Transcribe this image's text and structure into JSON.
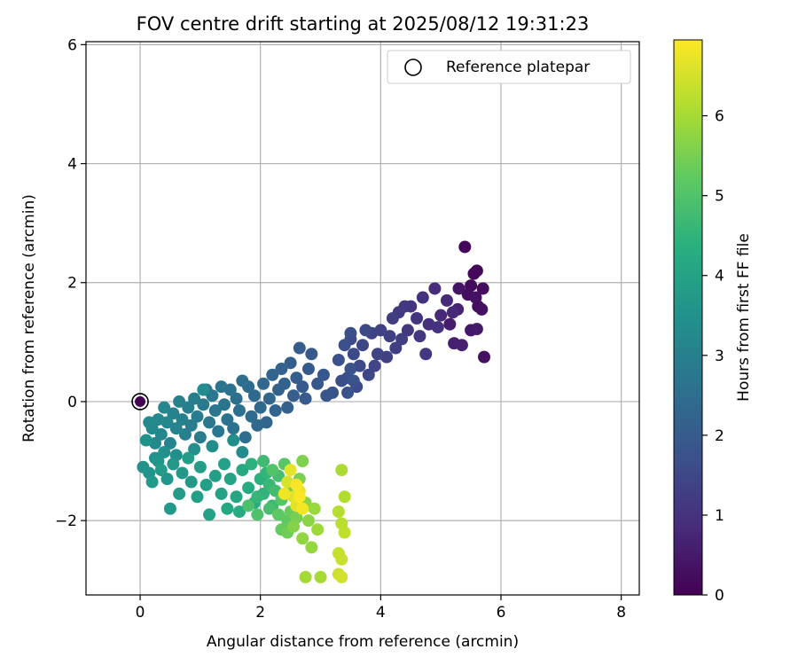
{
  "chart_data": {
    "type": "scatter",
    "title": "FOV centre drift starting at 2025/08/12 19:31:23",
    "xlabel": "Angular distance from reference (arcmin)",
    "ylabel": "Rotation from reference (arcmin)",
    "xlim": [
      -0.9,
      8.3
    ],
    "ylim": [
      -3.25,
      6.05
    ],
    "xticks": [
      0,
      2,
      4,
      6,
      8
    ],
    "xtick_labels": [
      "0",
      "2",
      "4",
      "6",
      "8"
    ],
    "yticks": [
      -2,
      0,
      2,
      4,
      6
    ],
    "ytick_labels": [
      "−2",
      "0",
      "2",
      "4",
      "6"
    ],
    "grid": true,
    "legend": {
      "position": "top-right",
      "label": "Reference platepar"
    },
    "reference_point": {
      "x": 0,
      "y": 0
    },
    "colorbar": {
      "label": "Hours from first FF file",
      "range": [
        0,
        6.95
      ],
      "ticks": [
        0,
        1,
        2,
        3,
        4,
        5,
        6
      ],
      "tick_labels": [
        "0",
        "1",
        "2",
        "3",
        "4",
        "5",
        "6"
      ],
      "colormap": "viridis"
    },
    "series": [
      {
        "points_x_y_hours": [
          [
            5.4,
            2.6,
            0.1
          ],
          [
            5.6,
            2.2,
            0.12
          ],
          [
            5.55,
            2.15,
            0.15
          ],
          [
            5.7,
            1.9,
            0.2
          ],
          [
            5.5,
            1.95,
            0.22
          ],
          [
            5.45,
            1.8,
            0.25
          ],
          [
            5.62,
            1.6,
            0.28
          ],
          [
            5.68,
            1.55,
            0.3
          ],
          [
            5.58,
            1.75,
            0.32
          ],
          [
            5.72,
            0.75,
            0.35
          ],
          [
            5.3,
            1.9,
            0.4
          ],
          [
            5.5,
            1.2,
            0.45
          ],
          [
            5.6,
            1.22,
            0.5
          ],
          [
            5.15,
            1.3,
            0.55
          ],
          [
            5.22,
            0.98,
            0.6
          ],
          [
            5.35,
            0.95,
            0.65
          ],
          [
            5.28,
            1.55,
            0.7
          ],
          [
            5.0,
            1.45,
            0.8
          ],
          [
            5.1,
            1.7,
            0.82
          ],
          [
            5.2,
            1.5,
            0.85
          ],
          [
            4.9,
            1.9,
            0.9
          ],
          [
            4.8,
            1.3,
            0.95
          ],
          [
            4.95,
            1.25,
            1.0
          ],
          [
            4.7,
            1.75,
            1.02
          ],
          [
            4.6,
            1.4,
            1.05
          ],
          [
            4.5,
            1.6,
            1.08
          ],
          [
            4.65,
            1.1,
            1.1
          ],
          [
            4.75,
            0.8,
            1.12
          ],
          [
            4.45,
            1.2,
            1.15
          ],
          [
            4.4,
            1.6,
            1.18
          ],
          [
            4.3,
            1.5,
            1.2
          ],
          [
            4.2,
            1.4,
            1.25
          ],
          [
            4.35,
            1.05,
            1.28
          ],
          [
            4.25,
            0.9,
            1.3
          ],
          [
            4.15,
            1.1,
            1.32
          ],
          [
            4.1,
            0.75,
            1.35
          ],
          [
            4.0,
            1.2,
            1.38
          ],
          [
            3.95,
            0.8,
            1.4
          ],
          [
            3.85,
            1.15,
            1.42
          ],
          [
            3.9,
            0.6,
            1.45
          ],
          [
            3.8,
            0.45,
            1.48
          ],
          [
            3.7,
            0.95,
            1.5
          ],
          [
            3.75,
            1.2,
            1.52
          ],
          [
            3.65,
            0.6,
            1.55
          ],
          [
            3.55,
            0.8,
            1.58
          ],
          [
            3.5,
            1.05,
            1.6
          ],
          [
            3.6,
            0.25,
            1.62
          ],
          [
            3.45,
            0.4,
            1.65
          ],
          [
            3.4,
            0.95,
            1.68
          ],
          [
            3.5,
            1.15,
            1.7
          ],
          [
            3.35,
            0.35,
            1.72
          ],
          [
            3.3,
            0.7,
            1.75
          ],
          [
            3.5,
            0.55,
            1.78
          ],
          [
            3.55,
            0.35,
            1.8
          ],
          [
            3.45,
            0.15,
            1.82
          ],
          [
            3.2,
            0.15,
            1.85
          ],
          [
            3.1,
            0.1,
            1.88
          ],
          [
            3.05,
            0.45,
            1.9
          ],
          [
            2.95,
            0.3,
            1.92
          ],
          [
            2.85,
            0.8,
            1.95
          ],
          [
            2.8,
            0.55,
            1.98
          ],
          [
            2.7,
            0.25,
            2.0
          ],
          [
            2.75,
            0.05,
            2.02
          ],
          [
            2.65,
            0.9,
            2.05
          ],
          [
            2.6,
            0.4,
            2.08
          ],
          [
            2.55,
            0.1,
            2.1
          ],
          [
            2.5,
            0.65,
            2.12
          ],
          [
            2.45,
            -0.1,
            2.15
          ],
          [
            2.4,
            0.3,
            2.18
          ],
          [
            2.35,
            0.55,
            2.2
          ],
          [
            2.3,
            0.2,
            2.22
          ],
          [
            2.25,
            -0.15,
            2.25
          ],
          [
            2.2,
            0.45,
            2.28
          ],
          [
            2.15,
            0.05,
            2.3
          ],
          [
            2.1,
            -0.35,
            2.32
          ],
          [
            2.05,
            0.3,
            2.35
          ],
          [
            2.0,
            -0.1,
            2.38
          ],
          [
            1.95,
            -0.4,
            2.4
          ],
          [
            1.9,
            0.1,
            2.42
          ],
          [
            1.85,
            -0.25,
            2.45
          ],
          [
            1.8,
            0.25,
            2.48
          ],
          [
            1.75,
            -0.6,
            2.5
          ],
          [
            1.7,
            0.35,
            2.52
          ],
          [
            1.65,
            -0.15,
            2.55
          ],
          [
            1.6,
            0.05,
            2.58
          ],
          [
            1.55,
            -0.45,
            2.6
          ],
          [
            1.5,
            0.2,
            2.62
          ],
          [
            1.45,
            -0.3,
            2.65
          ],
          [
            1.4,
            -0.05,
            2.68
          ],
          [
            1.35,
            0.25,
            2.7
          ],
          [
            1.3,
            -0.5,
            2.72
          ],
          [
            1.25,
            -0.15,
            2.75
          ],
          [
            1.2,
            0.1,
            2.78
          ],
          [
            1.15,
            -0.35,
            2.8
          ],
          [
            1.1,
            0.2,
            2.82
          ],
          [
            1.05,
            -0.05,
            2.85
          ],
          [
            1.0,
            -0.6,
            2.88
          ],
          [
            0.95,
            -0.25,
            2.9
          ],
          [
            0.9,
            0.05,
            2.92
          ],
          [
            0.85,
            -0.4,
            2.95
          ],
          [
            0.8,
            -0.1,
            2.98
          ],
          [
            0.75,
            -0.55,
            3.0
          ],
          [
            0.7,
            -0.3,
            3.02
          ],
          [
            0.65,
            0.0,
            3.05
          ],
          [
            0.6,
            -0.45,
            3.08
          ],
          [
            0.55,
            -0.2,
            3.1
          ],
          [
            0.5,
            -0.7,
            3.12
          ],
          [
            0.45,
            -0.35,
            3.15
          ],
          [
            0.4,
            -0.1,
            3.18
          ],
          [
            0.35,
            -0.55,
            3.2
          ],
          [
            0.3,
            -0.3,
            3.22
          ],
          [
            0.25,
            -0.7,
            3.25
          ],
          [
            0.2,
            -0.45,
            3.28
          ],
          [
            0.15,
            -0.35,
            3.3
          ],
          [
            1.7,
            -0.85,
            3.32
          ],
          [
            1.05,
            0.2,
            3.35
          ],
          [
            1.55,
            -0.65,
            3.38
          ],
          [
            1.2,
            -0.75,
            3.4
          ],
          [
            0.9,
            -0.8,
            3.42
          ],
          [
            0.6,
            -0.9,
            3.45
          ],
          [
            0.4,
            -0.85,
            3.48
          ],
          [
            0.25,
            -0.95,
            3.5
          ],
          [
            0.1,
            -0.65,
            3.52
          ],
          [
            0.05,
            -1.1,
            3.55
          ],
          [
            0.15,
            -1.2,
            3.58
          ],
          [
            0.3,
            -1.0,
            3.6
          ],
          [
            0.45,
            -1.3,
            3.62
          ],
          [
            0.55,
            -1.05,
            3.65
          ],
          [
            0.7,
            -1.2,
            3.68
          ],
          [
            0.85,
            -1.35,
            3.7
          ],
          [
            0.2,
            -1.35,
            3.72
          ],
          [
            0.5,
            -1.8,
            3.75
          ],
          [
            0.65,
            -1.55,
            3.78
          ],
          [
            0.35,
            -1.15,
            3.8
          ],
          [
            0.8,
            -0.95,
            3.82
          ],
          [
            1.0,
            -1.1,
            3.85
          ],
          [
            1.1,
            -1.4,
            3.88
          ],
          [
            0.95,
            -1.6,
            3.9
          ],
          [
            1.25,
            -1.25,
            3.92
          ],
          [
            1.4,
            -1.05,
            3.95
          ],
          [
            1.15,
            -1.9,
            3.98
          ],
          [
            1.35,
            -1.55,
            4.0
          ],
          [
            1.5,
            -1.3,
            4.05
          ],
          [
            1.6,
            -1.6,
            4.1
          ],
          [
            1.45,
            -1.8,
            4.15
          ],
          [
            1.7,
            -1.15,
            4.2
          ],
          [
            1.8,
            -1.45,
            4.25
          ],
          [
            1.65,
            -1.85,
            4.3
          ],
          [
            1.9,
            -1.7,
            4.35
          ],
          [
            2.0,
            -1.3,
            4.4
          ],
          [
            1.85,
            -1.05,
            4.45
          ],
          [
            2.05,
            -1.55,
            4.5
          ],
          [
            2.1,
            -1.2,
            4.55
          ],
          [
            1.95,
            -1.6,
            4.6
          ],
          [
            2.15,
            -1.4,
            4.65
          ],
          [
            2.2,
            -1.75,
            4.7
          ],
          [
            2.05,
            -1.0,
            4.75
          ],
          [
            2.25,
            -1.5,
            4.8
          ],
          [
            2.3,
            -1.25,
            4.85
          ],
          [
            2.15,
            -1.8,
            4.9
          ],
          [
            1.8,
            -1.75,
            4.95
          ],
          [
            1.95,
            -1.9,
            5.0
          ],
          [
            2.2,
            -1.15,
            5.05
          ],
          [
            2.35,
            -1.65,
            5.1
          ],
          [
            2.4,
            -1.05,
            5.15
          ],
          [
            2.3,
            -1.9,
            5.2
          ],
          [
            2.45,
            -2.0,
            5.25
          ],
          [
            2.35,
            -2.15,
            5.3
          ],
          [
            2.5,
            -1.85,
            5.35
          ],
          [
            2.55,
            -1.45,
            5.4
          ],
          [
            2.45,
            -2.2,
            5.45
          ],
          [
            2.6,
            -1.95,
            5.5
          ],
          [
            2.65,
            -1.3,
            5.55
          ],
          [
            2.7,
            -1.0,
            5.6
          ],
          [
            2.55,
            -2.1,
            5.65
          ],
          [
            2.75,
            -1.7,
            5.7
          ],
          [
            2.8,
            -2.0,
            5.75
          ],
          [
            2.7,
            -2.3,
            5.8
          ],
          [
            2.85,
            -2.45,
            5.85
          ],
          [
            2.9,
            -1.8,
            5.9
          ],
          [
            2.95,
            -2.15,
            5.95
          ],
          [
            2.75,
            -2.95,
            6.0
          ],
          [
            3.0,
            -2.95,
            6.05
          ],
          [
            3.35,
            -1.15,
            6.1
          ],
          [
            3.4,
            -1.6,
            6.15
          ],
          [
            3.3,
            -1.85,
            6.2
          ],
          [
            3.35,
            -2.05,
            6.25
          ],
          [
            3.4,
            -2.2,
            6.3
          ],
          [
            3.3,
            -2.55,
            6.35
          ],
          [
            3.35,
            -2.65,
            6.4
          ],
          [
            3.3,
            -2.9,
            6.45
          ],
          [
            3.35,
            -2.95,
            6.5
          ],
          [
            2.45,
            -1.35,
            6.55
          ],
          [
            2.55,
            -1.6,
            6.6
          ],
          [
            2.6,
            -1.75,
            6.65
          ],
          [
            2.5,
            -1.15,
            6.7
          ],
          [
            2.65,
            -1.5,
            6.75
          ],
          [
            2.4,
            -1.55,
            6.8
          ],
          [
            2.7,
            -1.8,
            6.85
          ],
          [
            2.6,
            -1.4,
            6.9
          ],
          [
            2.65,
            -1.6,
            6.95
          ]
        ]
      }
    ]
  }
}
